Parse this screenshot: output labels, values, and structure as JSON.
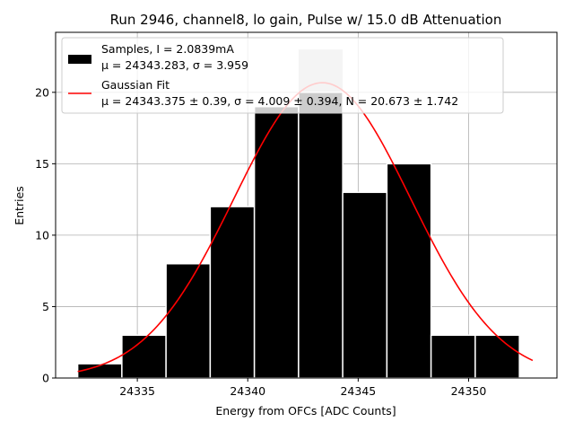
{
  "chart_data": {
    "type": "bar",
    "title": "Run 2946, channel8, lo gain, Pulse w/ 15.0 dB Attenuation",
    "xlabel": "Energy from OFCs [ADC Counts]",
    "ylabel": "Entries",
    "xlim": [
      24331.3,
      24354.0
    ],
    "ylim": [
      0,
      24.2
    ],
    "xticks": [
      24335,
      24340,
      24345,
      24350
    ],
    "yticks": [
      0,
      5,
      10,
      15,
      20
    ],
    "grid": true,
    "legend_position": "upper-left",
    "bins": [
      {
        "x0": 24332.3,
        "x1": 24334.3,
        "value": 1
      },
      {
        "x0": 24334.3,
        "x1": 24336.3,
        "value": 3
      },
      {
        "x0": 24336.3,
        "x1": 24338.3,
        "value": 8
      },
      {
        "x0": 24338.3,
        "x1": 24340.3,
        "value": 12
      },
      {
        "x0": 24340.3,
        "x1": 24342.3,
        "value": 19
      },
      {
        "x0": 24342.3,
        "x1": 24344.3,
        "value": 20
      },
      {
        "x0": 24344.3,
        "x1": 24346.3,
        "value": 13
      },
      {
        "x0": 24346.3,
        "x1": 24348.3,
        "value": 15
      },
      {
        "x0": 24348.3,
        "x1": 24350.3,
        "value": 3
      },
      {
        "x0": 24350.3,
        "x1": 24352.3,
        "value": 3
      }
    ],
    "shadow_bin": {
      "x0": 24342.3,
      "x1": 24344.3,
      "value": 23
    },
    "fit": {
      "mu": 24343.375,
      "sigma": 4.009,
      "N": 20.673,
      "x_range": [
        24332.3,
        24352.9
      ]
    },
    "series": [
      {
        "name": "Samples, I = 2.0839mA",
        "sub": "μ = 24343.283, σ = 3.959",
        "color": "#000000"
      },
      {
        "name": "Gaussian Fit",
        "sub": "μ = 24343.375 ± 0.39, σ = 4.009 ± 0.394, N = 20.673 ± 1.742",
        "color": "#ff0000"
      }
    ]
  }
}
